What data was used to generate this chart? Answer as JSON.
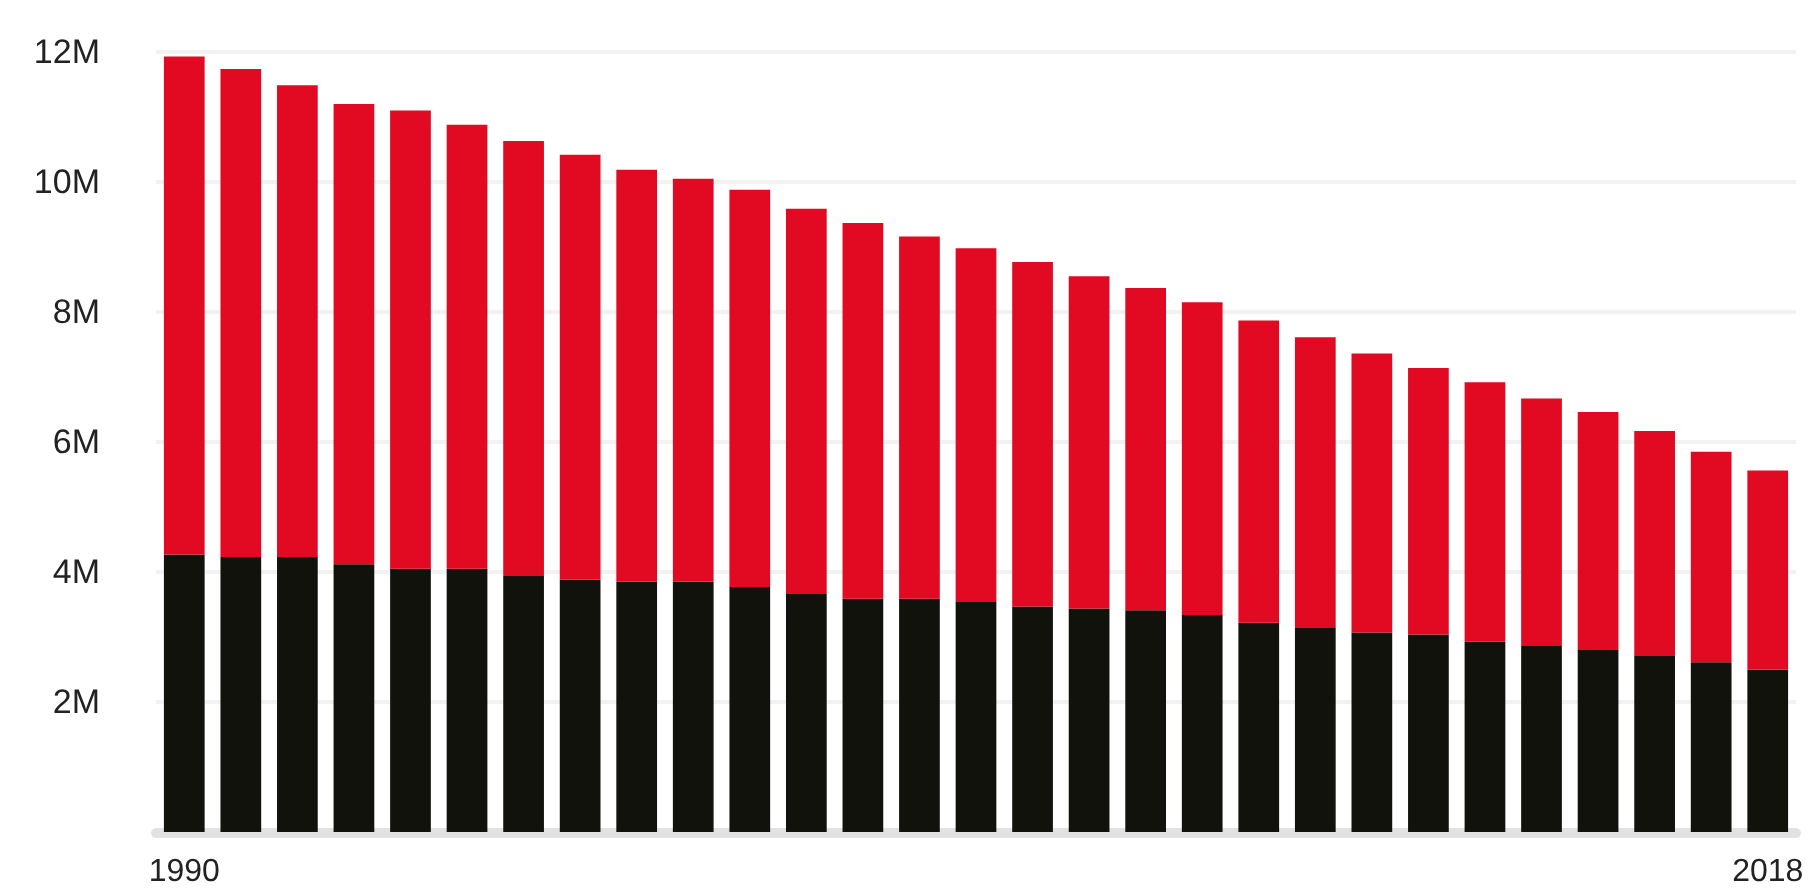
{
  "chart_data": {
    "type": "bar",
    "stacked": true,
    "categories": [
      "1990",
      null,
      null,
      null,
      null,
      null,
      null,
      null,
      null,
      null,
      null,
      null,
      null,
      null,
      null,
      null,
      null,
      null,
      null,
      null,
      null,
      null,
      null,
      null,
      null,
      null,
      null,
      null,
      "2018"
    ],
    "series": [
      {
        "color": "#12120d",
        "values": [
          4.27,
          4.23,
          4.23,
          4.12,
          4.05,
          4.05,
          3.95,
          3.88,
          3.85,
          3.85,
          3.77,
          3.66,
          3.59,
          3.59,
          3.55,
          3.47,
          3.44,
          3.41,
          3.34,
          3.22,
          3.15,
          3.07,
          3.04,
          2.93,
          2.86,
          2.8,
          2.72,
          2.61,
          2.5
        ]
      },
      {
        "color": "#e20a22",
        "values": [
          7.66,
          7.51,
          7.26,
          7.08,
          7.05,
          6.83,
          6.68,
          6.54,
          6.34,
          6.2,
          6.11,
          5.93,
          5.78,
          5.57,
          5.43,
          5.3,
          5.11,
          4.96,
          4.81,
          4.65,
          4.46,
          4.29,
          4.1,
          3.99,
          3.81,
          3.66,
          3.45,
          3.24,
          3.06
        ]
      }
    ],
    "ylim": [
      0,
      12
    ],
    "yticks": [
      {
        "value": 2,
        "label": "2M"
      },
      {
        "value": 4,
        "label": "4M"
      },
      {
        "value": 6,
        "label": "6M"
      },
      {
        "value": 8,
        "label": "8M"
      },
      {
        "value": 10,
        "label": "10M"
      },
      {
        "value": 12,
        "label": "12M"
      }
    ],
    "grid": "y"
  }
}
